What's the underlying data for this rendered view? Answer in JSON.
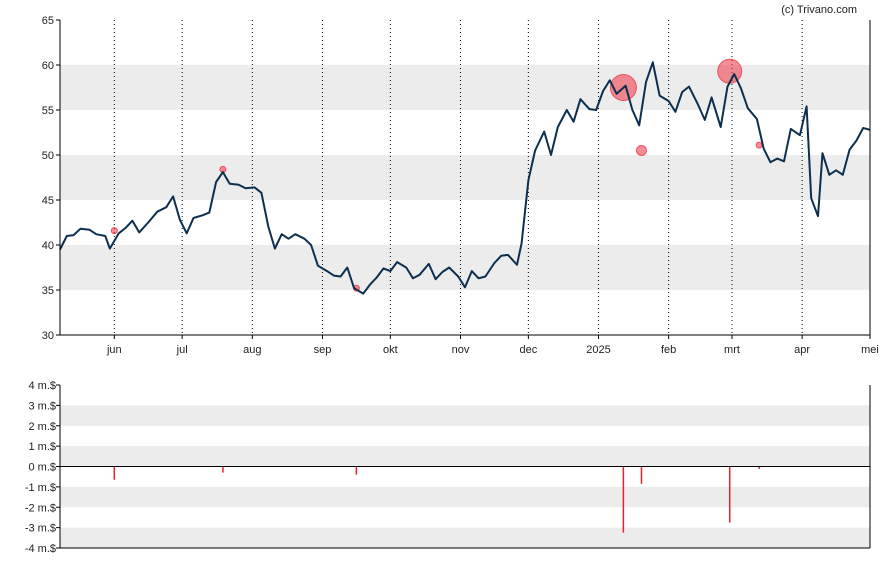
{
  "watermark": "(c) Trivano.com",
  "colors": {
    "price_line": "#0d2f4f",
    "trade_fill": "#ee3344",
    "band": "#ececec",
    "bar": "#e8202e",
    "axis": "#000000",
    "grid": "#000000"
  },
  "chart_data": [
    {
      "type": "line",
      "title": "",
      "xlabel": "",
      "ylabel": "",
      "ylim": [
        30,
        65
      ],
      "yticks": [
        30,
        35,
        40,
        45,
        50,
        55,
        60,
        65
      ],
      "x_start": "2024-05-08",
      "x_end": "2025-05-01",
      "month_ticks": [
        {
          "label": "jun",
          "date": "2024-06-01"
        },
        {
          "label": "jul",
          "date": "2024-07-01"
        },
        {
          "label": "aug",
          "date": "2024-08-01"
        },
        {
          "label": "sep",
          "date": "2024-09-01"
        },
        {
          "label": "okt",
          "date": "2024-10-01"
        },
        {
          "label": "nov",
          "date": "2024-11-01"
        },
        {
          "label": "dec",
          "date": "2024-12-01"
        },
        {
          "label": "2025",
          "date": "2025-01-01"
        },
        {
          "label": "feb",
          "date": "2025-02-01"
        },
        {
          "label": "mrt",
          "date": "2025-03-01"
        },
        {
          "label": "apr",
          "date": "2025-04-01"
        },
        {
          "label": "mei",
          "date": "2025-05-01"
        }
      ],
      "grid": "dotted vertical at month starts, alternating horizontal bands",
      "series": [
        {
          "values": [
            [
              "2024-05-08",
              39.5
            ],
            [
              "2024-05-11",
              41.0
            ],
            [
              "2024-05-14",
              41.1
            ],
            [
              "2024-05-17",
              41.8
            ],
            [
              "2024-05-21",
              41.7
            ],
            [
              "2024-05-24",
              41.2
            ],
            [
              "2024-05-28",
              41.0
            ],
            [
              "2024-05-30",
              39.6
            ],
            [
              "2024-06-03",
              41.3
            ],
            [
              "2024-06-06",
              41.9
            ],
            [
              "2024-06-09",
              42.7
            ],
            [
              "2024-06-12",
              41.4
            ],
            [
              "2024-06-16",
              42.5
            ],
            [
              "2024-06-20",
              43.7
            ],
            [
              "2024-06-24",
              44.2
            ],
            [
              "2024-06-27",
              45.4
            ],
            [
              "2024-06-30",
              42.8
            ],
            [
              "2024-07-03",
              41.3
            ],
            [
              "2024-07-06",
              43.0
            ],
            [
              "2024-07-10",
              43.3
            ],
            [
              "2024-07-13",
              43.6
            ],
            [
              "2024-07-16",
              47.0
            ],
            [
              "2024-07-19",
              48.1
            ],
            [
              "2024-07-22",
              46.8
            ],
            [
              "2024-07-26",
              46.7
            ],
            [
              "2024-07-29",
              46.3
            ],
            [
              "2024-08-02",
              46.4
            ],
            [
              "2024-08-05",
              45.8
            ],
            [
              "2024-08-08",
              42.1
            ],
            [
              "2024-08-11",
              39.6
            ],
            [
              "2024-08-14",
              41.2
            ],
            [
              "2024-08-17",
              40.7
            ],
            [
              "2024-08-20",
              41.2
            ],
            [
              "2024-08-24",
              40.7
            ],
            [
              "2024-08-27",
              40.0
            ],
            [
              "2024-08-30",
              37.7
            ],
            [
              "2024-09-03",
              37.1
            ],
            [
              "2024-09-06",
              36.6
            ],
            [
              "2024-09-09",
              36.5
            ],
            [
              "2024-09-12",
              37.5
            ],
            [
              "2024-09-15",
              35.2
            ],
            [
              "2024-09-19",
              34.6
            ],
            [
              "2024-09-22",
              35.6
            ],
            [
              "2024-09-25",
              36.4
            ],
            [
              "2024-09-28",
              37.4
            ],
            [
              "2024-10-01",
              37.1
            ],
            [
              "2024-10-04",
              38.1
            ],
            [
              "2024-10-08",
              37.5
            ],
            [
              "2024-10-11",
              36.3
            ],
            [
              "2024-10-14",
              36.7
            ],
            [
              "2024-10-18",
              37.9
            ],
            [
              "2024-10-21",
              36.2
            ],
            [
              "2024-10-24",
              37.0
            ],
            [
              "2024-10-27",
              37.5
            ],
            [
              "2024-10-31",
              36.5
            ],
            [
              "2024-11-03",
              35.3
            ],
            [
              "2024-11-06",
              37.1
            ],
            [
              "2024-11-09",
              36.3
            ],
            [
              "2024-11-12",
              36.5
            ],
            [
              "2024-11-16",
              38.0
            ],
            [
              "2024-11-19",
              38.8
            ],
            [
              "2024-11-22",
              38.9
            ],
            [
              "2024-11-26",
              37.8
            ],
            [
              "2024-11-28",
              40.2
            ],
            [
              "2024-12-01",
              47.2
            ],
            [
              "2024-12-04",
              50.5
            ],
            [
              "2024-12-08",
              52.6
            ],
            [
              "2024-12-11",
              50.0
            ],
            [
              "2024-12-14",
              53.1
            ],
            [
              "2024-12-18",
              55.0
            ],
            [
              "2024-12-21",
              53.7
            ],
            [
              "2024-12-24",
              56.2
            ],
            [
              "2024-12-28",
              55.1
            ],
            [
              "2024-12-31",
              55.0
            ],
            [
              "2025-01-03",
              57.1
            ],
            [
              "2025-01-06",
              58.3
            ],
            [
              "2025-01-09",
              56.8
            ],
            [
              "2025-01-13",
              57.7
            ],
            [
              "2025-01-16",
              55.0
            ],
            [
              "2025-01-19",
              53.3
            ],
            [
              "2025-01-22",
              58.1
            ],
            [
              "2025-01-25",
              60.3
            ],
            [
              "2025-01-28",
              56.6
            ],
            [
              "2025-02-01",
              56.0
            ],
            [
              "2025-02-04",
              54.8
            ],
            [
              "2025-02-07",
              57.0
            ],
            [
              "2025-02-10",
              57.6
            ],
            [
              "2025-02-14",
              55.6
            ],
            [
              "2025-02-17",
              53.9
            ],
            [
              "2025-02-20",
              56.4
            ],
            [
              "2025-02-24",
              53.1
            ],
            [
              "2025-02-27",
              57.6
            ],
            [
              "2025-03-02",
              59.0
            ],
            [
              "2025-03-05",
              57.4
            ],
            [
              "2025-03-08",
              55.2
            ],
            [
              "2025-03-12",
              54.0
            ],
            [
              "2025-03-15",
              50.7
            ],
            [
              "2025-03-18",
              49.2
            ],
            [
              "2025-03-21",
              49.6
            ],
            [
              "2025-03-24",
              49.3
            ],
            [
              "2025-03-27",
              52.9
            ],
            [
              "2025-03-31",
              52.2
            ],
            [
              "2025-04-03",
              55.4
            ],
            [
              "2025-04-05",
              45.2
            ],
            [
              "2025-04-08",
              43.2
            ],
            [
              "2025-04-10",
              50.2
            ],
            [
              "2025-04-13",
              47.8
            ],
            [
              "2025-04-16",
              48.3
            ],
            [
              "2025-04-19",
              47.8
            ],
            [
              "2025-04-22",
              50.6
            ],
            [
              "2025-04-25",
              51.6
            ],
            [
              "2025-04-28",
              53.0
            ],
            [
              "2025-05-01",
              52.8
            ]
          ]
        }
      ],
      "trade_markers": [
        {
          "date": "2024-06-01",
          "y": 41.6,
          "size": 1
        },
        {
          "date": "2024-07-19",
          "y": 48.4,
          "size": 1
        },
        {
          "date": "2024-09-16",
          "y": 35.2,
          "size": 1
        },
        {
          "date": "2025-01-12",
          "y": 57.5,
          "size": 11
        },
        {
          "date": "2025-01-20",
          "y": 50.5,
          "size": 3
        },
        {
          "date": "2025-02-28",
          "y": 59.3,
          "size": 10
        },
        {
          "date": "2025-03-13",
          "y": 51.1,
          "size": 1
        }
      ]
    },
    {
      "type": "bar",
      "title": "",
      "xlabel": "",
      "ylabel": "",
      "ylim": [
        -4,
        4
      ],
      "yticks": [
        {
          "value": 4,
          "label": "4 m.$"
        },
        {
          "value": 3,
          "label": "3 m.$"
        },
        {
          "value": 2,
          "label": "2 m.$"
        },
        {
          "value": 1,
          "label": "1 m.$"
        },
        {
          "value": 0,
          "label": "0 m.$"
        },
        {
          "value": -1,
          "label": "-1 m.$"
        },
        {
          "value": -2,
          "label": "-2 m.$"
        },
        {
          "value": -3,
          "label": "-3 m.$"
        },
        {
          "value": -4,
          "label": "-4 m.$"
        }
      ],
      "bars": [
        {
          "date": "2024-06-01",
          "value": -0.65
        },
        {
          "date": "2024-07-19",
          "value": -0.3
        },
        {
          "date": "2024-09-16",
          "value": -0.4
        },
        {
          "date": "2025-01-12",
          "value": -3.25
        },
        {
          "date": "2025-01-20",
          "value": -0.85
        },
        {
          "date": "2025-02-28",
          "value": -2.75
        },
        {
          "date": "2025-03-13",
          "value": -0.12
        }
      ]
    }
  ]
}
